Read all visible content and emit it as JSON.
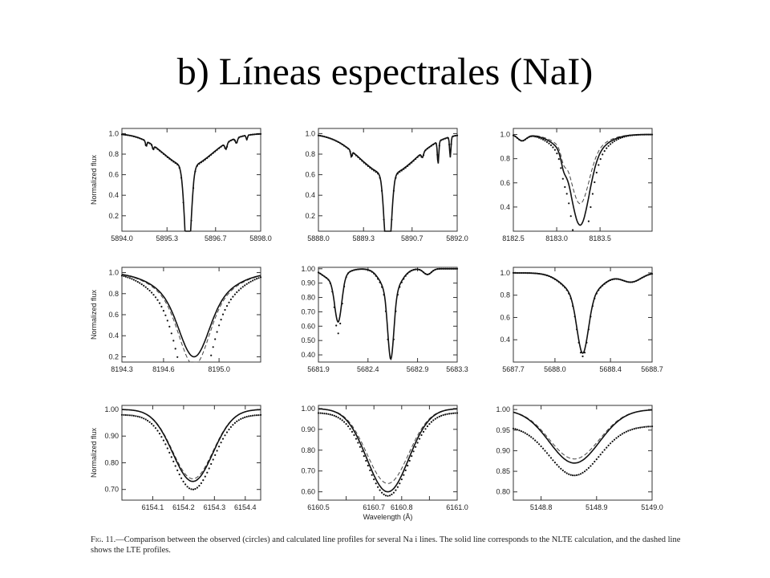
{
  "title": "b) Líneas espectrales (NaI)",
  "caption": {
    "fig_label": "Fig. 11.",
    "text": "—Comparison between the observed (circles) and calculated line profiles for several Na i lines. The solid line corresponds to the NLTE calculation, and the dashed line shows the LTE profiles."
  },
  "chart_data": [
    {
      "type": "line",
      "ylabel": "Normalized flux",
      "xlabel": "",
      "xlim": [
        5894.0,
        5898.0
      ],
      "ylim": [
        0.05,
        1.05
      ],
      "xticks": [
        5894.0,
        5895.3,
        5896.7,
        5898.0
      ],
      "xtick_labels": [
        "5894.0",
        "5895.3",
        "5896.7",
        "5898.0"
      ],
      "yticks": [
        0.2,
        0.4,
        0.6,
        0.8,
        1.0
      ],
      "ytick_labels": [
        "0.2",
        "0.4",
        "0.6",
        "0.8",
        "1.0"
      ],
      "line_center": 5895.9,
      "core_depth": 0.95,
      "core_width": 0.09,
      "wing_depth": 0.32,
      "wing_width": 0.7,
      "lte_core_depth": 0.95,
      "obs_core_depth": 0.97,
      "blends": [
        [
          5894.7,
          0.05,
          0.02
        ],
        [
          5894.9,
          0.04,
          0.02
        ],
        [
          5897.0,
          0.06,
          0.03
        ],
        [
          5897.3,
          0.05,
          0.03
        ],
        [
          5897.6,
          0.04,
          0.02
        ]
      ]
    },
    {
      "type": "line",
      "ylabel": "",
      "xlabel": "",
      "xlim": [
        5888.0,
        5892.0
      ],
      "ylim": [
        0.05,
        1.05
      ],
      "xticks": [
        5888.0,
        5889.3,
        5890.7,
        5892.0
      ],
      "xtick_labels": [
        "5888.0",
        "5889.3",
        "5890.7",
        "5892.0"
      ],
      "yticks": [
        0.2,
        0.4,
        0.6,
        0.8,
        1.0
      ],
      "ytick_labels": [
        "0.2",
        "0.4",
        "0.6",
        "0.8",
        "1.0"
      ],
      "line_center": 5890.0,
      "core_depth": 0.95,
      "core_width": 0.09,
      "wing_depth": 0.4,
      "wing_width": 0.8,
      "lte_core_depth": 0.95,
      "obs_core_depth": 0.97,
      "blends": [
        [
          5888.95,
          0.06,
          0.02
        ],
        [
          5891.45,
          0.22,
          0.02
        ],
        [
          5891.8,
          0.2,
          0.02
        ],
        [
          5891.0,
          0.05,
          0.03
        ]
      ]
    },
    {
      "type": "line",
      "ylabel": "",
      "xlabel": "",
      "xlim": [
        8182.5,
        8184.1
      ],
      "ylim": [
        0.2,
        1.05
      ],
      "xticks": [
        8182.5,
        8183.0,
        8183.5
      ],
      "xtick_labels": [
        "8182.5",
        "8183.0",
        "8183.5"
      ],
      "yticks": [
        0.4,
        0.6,
        0.8,
        1.0
      ],
      "ytick_labels": [
        "0.4",
        "0.6",
        "0.8",
        "1.0"
      ],
      "line_center": 8183.27,
      "core_depth": 0.55,
      "core_width": 0.1,
      "wing_depth": 0.2,
      "wing_width": 0.22,
      "lte_core_depth": 0.42,
      "obs_core_depth": 0.76,
      "blends": [
        [
          8182.6,
          0.05,
          0.05
        ],
        [
          8183.08,
          0.08,
          0.03
        ]
      ]
    },
    {
      "type": "line",
      "ylabel": "Normalized flux",
      "xlabel": "",
      "xlim": [
        8194.3,
        8195.3
      ],
      "ylim": [
        0.15,
        1.05
      ],
      "xticks": [
        8194.3,
        8194.6,
        8195.0
      ],
      "xtick_labels": [
        "8194.3",
        "8194.6",
        "8195.0"
      ],
      "yticks": [
        0.2,
        0.4,
        0.6,
        0.8,
        1.0
      ],
      "ytick_labels": [
        "0.2",
        "0.4",
        "0.6",
        "0.8",
        "1.0"
      ],
      "line_center": 8194.82,
      "core_depth": 0.5,
      "core_width": 0.1,
      "wing_depth": 0.3,
      "wing_width": 0.22,
      "lte_core_depth": 0.55,
      "obs_core_depth": 0.8,
      "blends": []
    },
    {
      "type": "line",
      "ylabel": "",
      "xlabel": "",
      "xlim": [
        5681.9,
        5683.3
      ],
      "ylim": [
        0.35,
        1.01
      ],
      "xticks": [
        5681.9,
        5682.4,
        5682.9,
        5683.3
      ],
      "xtick_labels": [
        "5681.9",
        "5682.4",
        "5682.9",
        "5683.3"
      ],
      "yticks": [
        0.4,
        0.5,
        0.6,
        0.7,
        0.8,
        0.9,
        1.0
      ],
      "ytick_labels": [
        "0.40",
        "0.50",
        "0.60",
        "0.70",
        "0.80",
        "0.90",
        "1.00"
      ],
      "line_center": 5682.63,
      "core_depth": 0.45,
      "core_width": 0.03,
      "wing_depth": 0.18,
      "wing_width": 0.09,
      "lte_core_depth": 0.45,
      "obs_core_depth": 0.5,
      "blends": [
        [
          5682.1,
          0.3,
          0.035
        ],
        [
          5682.05,
          0.08,
          0.1
        ],
        [
          5683.0,
          0.04,
          0.04
        ]
      ],
      "obs_blend_extra": [
        5682.1,
        0.08
      ]
    },
    {
      "type": "line",
      "ylabel": "",
      "xlabel": "",
      "xlim": [
        5687.7,
        5688.7
      ],
      "ylim": [
        0.2,
        1.05
      ],
      "xticks": [
        5687.7,
        5688.0,
        5688.4,
        5688.7
      ],
      "xtick_labels": [
        "5687.7",
        "5688.0",
        "5688.4",
        "5688.7"
      ],
      "yticks": [
        0.4,
        0.6,
        0.8,
        1.0
      ],
      "ytick_labels": [
        "0.4",
        "0.6",
        "0.8",
        "1.0"
      ],
      "line_center": 5688.2,
      "core_depth": 0.5,
      "core_width": 0.04,
      "wing_depth": 0.22,
      "wing_width": 0.12,
      "lte_core_depth": 0.5,
      "obs_core_depth": 0.52,
      "blends": [
        [
          5688.55,
          0.08,
          0.07
        ]
      ]
    },
    {
      "type": "line",
      "ylabel": "Normalized flux",
      "xlabel": "",
      "xlim": [
        6154.0,
        6154.45
      ],
      "ylim": [
        0.66,
        1.015
      ],
      "xticks": [
        6154.1,
        6154.2,
        6154.3,
        6154.4
      ],
      "xtick_labels": [
        "6154.1",
        "6154.2",
        "6154.3",
        "6154.4"
      ],
      "yticks": [
        0.7,
        0.8,
        0.9,
        1.0
      ],
      "ytick_labels": [
        "0.70",
        "0.80",
        "0.90",
        "1.00"
      ],
      "line_center": 6154.23,
      "core_depth": 0.27,
      "core_width": 0.065,
      "wing_depth": 0.0,
      "wing_width": 0.1,
      "lte_core_depth": 0.26,
      "obs_core_depth": 0.28,
      "blends": [],
      "obs_continuum": 0.98
    },
    {
      "type": "line",
      "ylabel": "",
      "xlabel": "Wavelength (Å)",
      "xlim": [
        6160.5,
        6161.0
      ],
      "ylim": [
        0.56,
        1.015
      ],
      "xticks": [
        6160.5,
        6160.6,
        6160.7,
        6160.8,
        6160.9,
        6161.0
      ],
      "xtick_labels": [
        "6160.5",
        "",
        "6160.7",
        "6160.8",
        "",
        "6161.0"
      ],
      "yticks": [
        0.6,
        0.7,
        0.8,
        0.9,
        1.0
      ],
      "ytick_labels": [
        "0.60",
        "0.70",
        "0.80",
        "0.90",
        "1.00"
      ],
      "line_center": 6160.75,
      "core_depth": 0.4,
      "core_width": 0.075,
      "wing_depth": 0.0,
      "wing_width": 0.1,
      "lte_core_depth": 0.36,
      "obs_core_depth": 0.4,
      "blends": [],
      "obs_continuum": 0.98
    },
    {
      "type": "line",
      "ylabel": "",
      "xlabel": "",
      "xlim": [
        5148.75,
        5149.0
      ],
      "ylim": [
        0.78,
        1.01
      ],
      "xticks": [
        5148.8,
        5148.9,
        5149.0
      ],
      "xtick_labels": [
        "5148.8",
        "5148.9",
        "5149.0"
      ],
      "yticks": [
        0.8,
        0.85,
        0.9,
        0.95,
        1.0
      ],
      "ytick_labels": [
        "0.80",
        "0.85",
        "0.90",
        "0.95",
        "1.00"
      ],
      "line_center": 5148.86,
      "core_depth": 0.13,
      "core_width": 0.045,
      "wing_depth": 0.0,
      "wing_width": 0.1,
      "lte_core_depth": 0.12,
      "obs_core_depth": 0.12,
      "blends": [],
      "obs_continuum": 0.96,
      "start_flux": 0.96
    }
  ]
}
